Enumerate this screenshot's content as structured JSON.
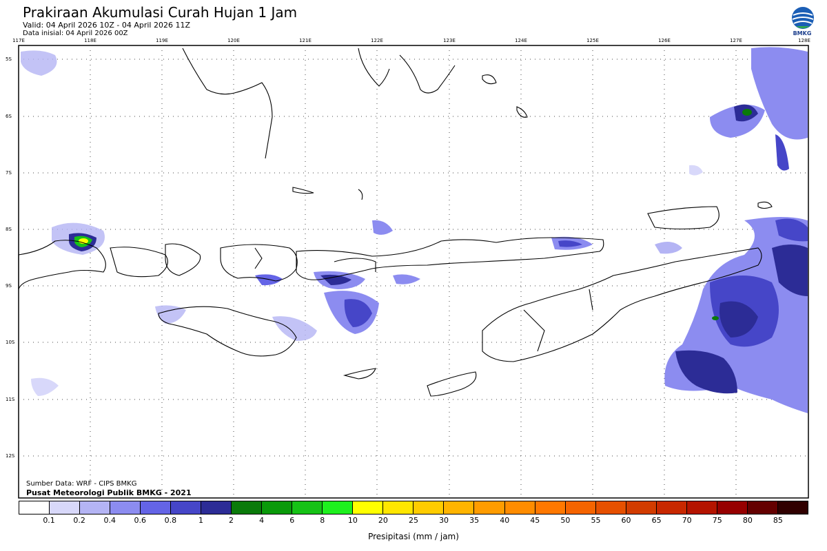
{
  "header": {
    "title": "Prakiraan Akumulasi Curah Hujan 1 Jam",
    "valid": "Valid: 04 April 2026 10Z - 04 April 2026 11Z",
    "data_initial": "Data inisial: 04 April 2026 00Z",
    "logo_text": "BMKG"
  },
  "map": {
    "lon_ticks": [
      "117E",
      "118E",
      "119E",
      "120E",
      "121E",
      "122E",
      "123E",
      "124E",
      "125E",
      "126E",
      "127E",
      "128E"
    ],
    "lat_ticks": [
      "5S",
      "6S",
      "7S",
      "8S",
      "9S",
      "10S",
      "11S",
      "12S"
    ]
  },
  "footer": {
    "source": "Sumber Data: WRF - CIPS BMKG",
    "org": "Pusat Meteorologi Publik BMKG - 2021"
  },
  "legend": {
    "unit_label": "Presipitasi (mm / jam)",
    "labels": [
      "0.1",
      "0.2",
      "0.4",
      "0.6",
      "0.8",
      "1",
      "2",
      "4",
      "6",
      "8",
      "10",
      "20",
      "25",
      "30",
      "35",
      "40",
      "45",
      "50",
      "55",
      "60",
      "65",
      "70",
      "75",
      "80",
      "85"
    ],
    "colors": [
      "#ffffff",
      "#d8d8fa",
      "#b4b4f4",
      "#8c8cf0",
      "#6464e6",
      "#4646c8",
      "#2c2c96",
      "#0a7a0a",
      "#0a9a0a",
      "#16c216",
      "#1ef01e",
      "#ffff00",
      "#ffe600",
      "#ffcc00",
      "#ffb400",
      "#ff9c00",
      "#ff8c00",
      "#ff7800",
      "#f56400",
      "#e65000",
      "#d23c00",
      "#c82800",
      "#b41400",
      "#960000",
      "#640000",
      "#300000"
    ]
  }
}
